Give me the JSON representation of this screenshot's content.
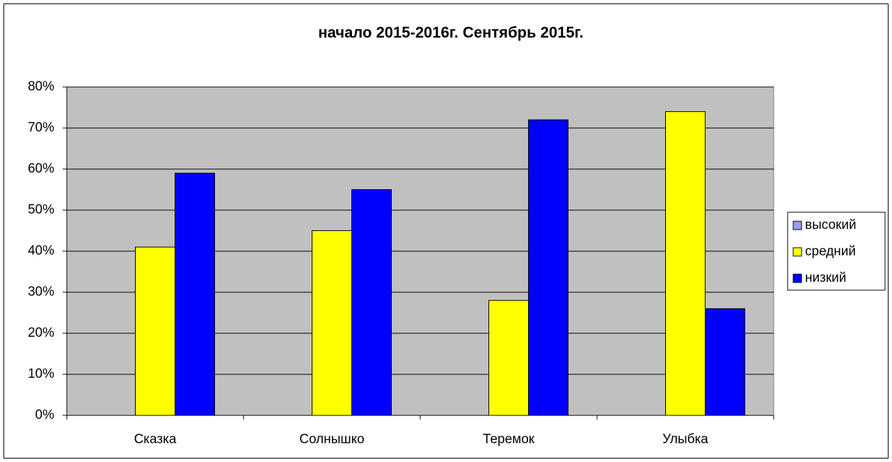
{
  "chart_data": {
    "type": "bar",
    "title": "начало 2015-2016г. Сентябрь 2015г.",
    "categories": [
      "Сказка",
      "Солнышко",
      "Теремок",
      "Улыбка"
    ],
    "series": [
      {
        "name": "высокий",
        "color": "#9999ff",
        "values": [
          0,
          0,
          0,
          0
        ]
      },
      {
        "name": "средний",
        "color": "#ffff00",
        "values": [
          41,
          45,
          28,
          74
        ]
      },
      {
        "name": "низкий",
        "color": "#0000ff",
        "values": [
          59,
          55,
          72,
          26
        ]
      }
    ],
    "ylim": [
      0,
      80
    ],
    "yticks": [
      {
        "value": 0,
        "label": "0%"
      },
      {
        "value": 10,
        "label": "10%"
      },
      {
        "value": 20,
        "label": "20%"
      },
      {
        "value": 30,
        "label": "30%"
      },
      {
        "value": 40,
        "label": "40%"
      },
      {
        "value": 50,
        "label": "50%"
      },
      {
        "value": 60,
        "label": "60%"
      },
      {
        "value": 70,
        "label": "70%"
      },
      {
        "value": 80,
        "label": "80%"
      }
    ],
    "grid": true,
    "legend": "right",
    "background": "#c0c0c0"
  }
}
